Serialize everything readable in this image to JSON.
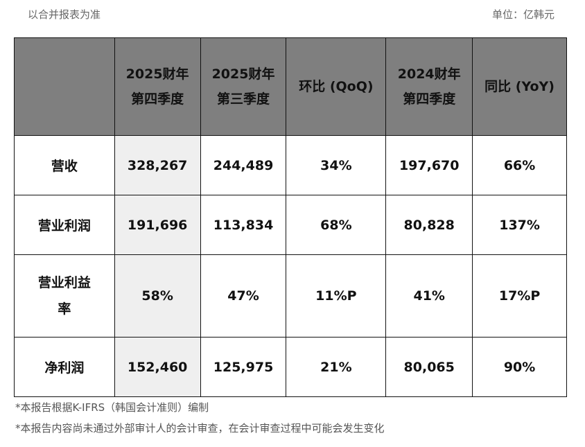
{
  "basis_note": "以合并报表为准",
  "unit_note": "单位：亿韩元",
  "table": {
    "headers": [
      "",
      "2025财年\n第四季度",
      "2025财年\n第三季度",
      "环比 (QoQ)",
      "2024财年\n第四季度",
      "同比 (YoY)"
    ],
    "rows": [
      [
        "营收",
        "328,267",
        "244,489",
        "34%",
        "197,670",
        "66%"
      ],
      [
        "营业利润",
        "191,696",
        "113,834",
        "68%",
        "80,828",
        "137%"
      ],
      [
        "营业利益\n率",
        "58%",
        "47%",
        "11%P",
        "41%",
        "17%P"
      ],
      [
        "净利润",
        "152,460",
        "125,975",
        "21%",
        "80,065",
        "90%"
      ]
    ]
  },
  "footnotes": [
    "*本报告根据K-IFRS（韩国会计准则）编制",
    "*本报告内容尚未通过外部审计人的会计审查，在会计审查过程中可能会发生变化"
  ],
  "colors": {
    "header_bg": "#7f7f7f",
    "highlight_col": "#efefef"
  }
}
